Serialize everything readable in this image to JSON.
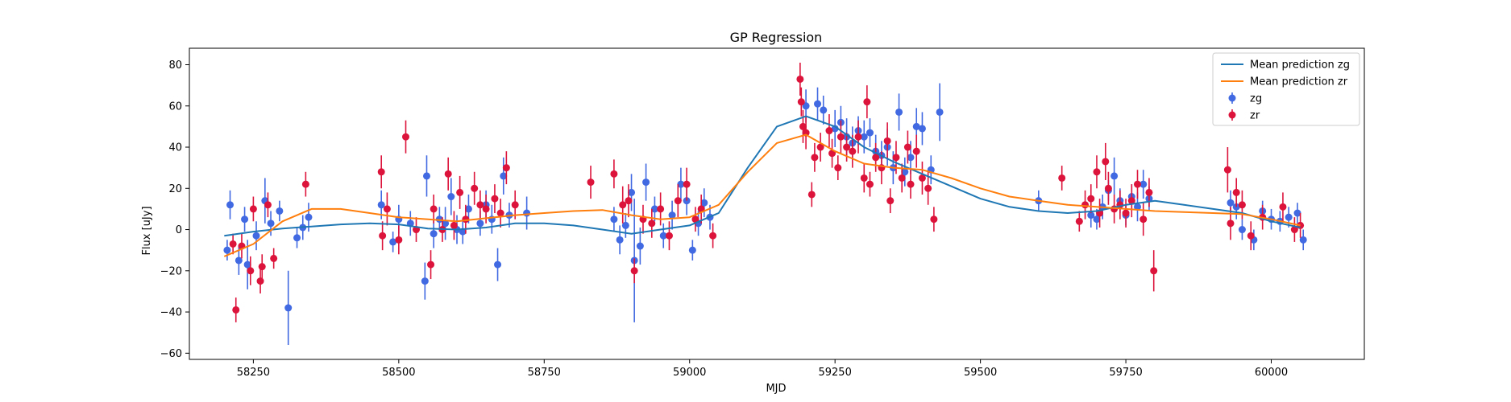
{
  "chart_data": {
    "type": "scatter",
    "title": "GP Regression",
    "xlabel": "MJD",
    "ylabel": "Flux [uJy]",
    "xlim": [
      58140,
      60160
    ],
    "ylim": [
      -63,
      88
    ],
    "xticks": [
      58250,
      58500,
      58750,
      59000,
      59250,
      59500,
      59750,
      60000
    ],
    "yticks": [
      -60,
      -40,
      -20,
      0,
      20,
      40,
      60,
      80
    ],
    "grid": false,
    "legend_position": "top-right",
    "colors": {
      "zg_points": "#4169e1",
      "zr_points": "#dc143c",
      "zg_line": "#1f77b4",
      "zr_line": "#ff7f0e"
    },
    "series": [
      {
        "name": "Mean prediction zg",
        "kind": "line",
        "x": [
          58200,
          58250,
          58300,
          58350,
          58400,
          58450,
          58500,
          58550,
          58600,
          58650,
          58700,
          58750,
          58800,
          58850,
          58900,
          58950,
          59000,
          59050,
          59100,
          59150,
          59200,
          59250,
          59300,
          59350,
          59400,
          59450,
          59500,
          59550,
          59600,
          59650,
          59700,
          59750,
          59800,
          59850,
          59900,
          59950,
          60000,
          60050
        ],
        "y": [
          -3,
          -1,
          0.5,
          1.5,
          2.5,
          3,
          2.5,
          0.5,
          0,
          1,
          3,
          3,
          2,
          0,
          -2,
          0,
          2,
          8,
          30,
          50,
          55,
          50,
          40,
          33,
          27,
          21,
          15,
          11,
          9,
          8,
          9,
          12,
          14,
          12,
          10,
          8,
          4,
          1
        ]
      },
      {
        "name": "Mean prediction zr",
        "kind": "line",
        "x": [
          58200,
          58250,
          58300,
          58350,
          58400,
          58450,
          58500,
          58550,
          58600,
          58650,
          58700,
          58750,
          58800,
          58850,
          58900,
          58950,
          59000,
          59050,
          59100,
          59150,
          59200,
          59250,
          59300,
          59350,
          59400,
          59450,
          59500,
          59550,
          59600,
          59650,
          59700,
          59750,
          59800,
          59850,
          59900,
          59950,
          60000,
          60050
        ],
        "y": [
          -13,
          -7,
          4,
          10,
          10,
          8,
          6,
          5,
          4,
          5.5,
          7,
          8,
          9,
          9.5,
          7,
          5,
          6,
          12,
          28,
          42,
          46,
          38,
          32,
          30,
          29,
          25,
          20,
          16,
          14,
          12,
          11,
          10,
          9,
          8.5,
          8,
          7.5,
          5,
          2
        ]
      },
      {
        "name": "zg",
        "kind": "errorbar",
        "x": [
          58205,
          58210,
          58225,
          58235,
          58240,
          58255,
          58270,
          58280,
          58295,
          58310,
          58325,
          58335,
          58345,
          58470,
          58490,
          58500,
          58520,
          58545,
          58548,
          58560,
          58570,
          58580,
          58590,
          58600,
          58610,
          58620,
          58640,
          58650,
          58660,
          58670,
          58680,
          58690,
          58720,
          58870,
          58880,
          58890,
          58900,
          58905,
          58915,
          58925,
          58940,
          58955,
          58970,
          58985,
          58995,
          59005,
          59015,
          59025,
          59035,
          59200,
          59220,
          59230,
          59250,
          59260,
          59270,
          59280,
          59290,
          59300,
          59310,
          59320,
          59330,
          59340,
          59350,
          59360,
          59370,
          59380,
          59390,
          59400,
          59415,
          59430,
          59600,
          59690,
          59700,
          59710,
          59720,
          59730,
          59740,
          59750,
          59760,
          59770,
          59780,
          59790,
          59930,
          59940,
          59950,
          59970,
          59985,
          60000,
          60015,
          60030,
          60045,
          60055
        ],
        "y": [
          -10,
          12,
          -15,
          5,
          -17,
          -3,
          14,
          3,
          9,
          -38,
          -4,
          1,
          6,
          12,
          -6,
          5,
          3,
          -25,
          26,
          -2,
          5,
          3,
          16,
          0,
          -1,
          10,
          3,
          12,
          5,
          -17,
          26,
          7,
          8,
          5,
          -5,
          2,
          18,
          -15,
          -8,
          23,
          10,
          -3,
          7,
          22,
          14,
          -10,
          3,
          13,
          6,
          60,
          61,
          58,
          49,
          52,
          45,
          42,
          48,
          45,
          47,
          38,
          36,
          40,
          30,
          57,
          28,
          35,
          50,
          49,
          29,
          57,
          14,
          7,
          5,
          11,
          19,
          26,
          14,
          7,
          16,
          11,
          22,
          15,
          13,
          11,
          0,
          -5,
          9,
          5,
          4,
          6,
          8,
          -5
        ],
        "err": [
          5,
          7,
          7,
          6,
          12,
          7,
          11,
          6,
          5,
          18,
          5,
          6,
          7,
          7,
          5,
          7,
          6,
          9,
          10,
          7,
          6,
          8,
          9,
          7,
          6,
          7,
          6,
          7,
          7,
          8,
          9,
          6,
          8,
          6,
          7,
          6,
          9,
          30,
          9,
          9,
          6,
          6,
          7,
          8,
          7,
          5,
          6,
          7,
          6,
          8,
          8,
          7,
          9,
          8,
          9,
          8,
          7,
          8,
          7,
          8,
          7,
          9,
          8,
          9,
          7,
          8,
          9,
          8,
          7,
          14,
          5,
          6,
          5,
          6,
          5,
          9,
          6,
          5,
          6,
          7,
          7,
          6,
          6,
          6,
          5,
          5,
          5,
          5,
          5,
          5,
          5,
          5
        ]
      },
      {
        "name": "zr",
        "kind": "errorbar",
        "x": [
          58215,
          58220,
          58230,
          58245,
          58250,
          58262,
          58265,
          58275,
          58285,
          58340,
          58470,
          58472,
          58480,
          58500,
          58512,
          58530,
          58555,
          58560,
          58575,
          58585,
          58595,
          58605,
          58615,
          58630,
          58640,
          58650,
          58665,
          58675,
          58685,
          58700,
          58830,
          58870,
          58885,
          58895,
          58905,
          58920,
          58935,
          58950,
          58965,
          58980,
          58995,
          59010,
          59020,
          59040,
          59190,
          59192,
          59195,
          59200,
          59210,
          59215,
          59225,
          59240,
          59245,
          59255,
          59260,
          59270,
          59280,
          59290,
          59300,
          59305,
          59310,
          59320,
          59330,
          59340,
          59345,
          59355,
          59365,
          59375,
          59380,
          59390,
          59400,
          59410,
          59420,
          59640,
          59670,
          59680,
          59690,
          59700,
          59705,
          59715,
          59720,
          59730,
          59740,
          59750,
          59760,
          59770,
          59780,
          59790,
          59798,
          59925,
          59930,
          59940,
          59950,
          59965,
          59985,
          60020,
          60040,
          60050
        ],
        "y": [
          -7,
          -39,
          -8,
          -20,
          10,
          -25,
          -18,
          12,
          -14,
          22,
          28,
          -3,
          10,
          -5,
          45,
          0,
          -17,
          10,
          0,
          27,
          2,
          18,
          5,
          20,
          12,
          10,
          15,
          8,
          30,
          12,
          23,
          27,
          12,
          14,
          -20,
          5,
          3,
          10,
          -3,
          14,
          22,
          5,
          10,
          -3,
          73,
          62,
          50,
          47,
          17,
          35,
          40,
          48,
          37,
          30,
          45,
          40,
          38,
          45,
          25,
          62,
          22,
          35,
          30,
          43,
          14,
          35,
          25,
          40,
          22,
          38,
          25,
          20,
          5,
          25,
          4,
          12,
          15,
          28,
          8,
          33,
          20,
          10,
          12,
          8,
          14,
          22,
          5,
          18,
          -20,
          29,
          3,
          18,
          12,
          -3,
          6,
          11,
          0,
          2
        ],
        "err": [
          5,
          6,
          6,
          7,
          6,
          6,
          6,
          6,
          5,
          6,
          8,
          7,
          8,
          7,
          8,
          6,
          7,
          7,
          6,
          8,
          7,
          8,
          7,
          8,
          7,
          7,
          7,
          7,
          8,
          7,
          8,
          7,
          9,
          8,
          6,
          7,
          7,
          8,
          7,
          8,
          8,
          6,
          7,
          6,
          8,
          7,
          8,
          8,
          6,
          7,
          7,
          8,
          7,
          6,
          8,
          7,
          8,
          8,
          7,
          8,
          6,
          7,
          8,
          9,
          6,
          8,
          7,
          8,
          7,
          8,
          8,
          8,
          6,
          6,
          5,
          7,
          7,
          8,
          7,
          9,
          8,
          7,
          7,
          7,
          8,
          7,
          8,
          7,
          10,
          11,
          8,
          7,
          7,
          7,
          6,
          7,
          6,
          6
        ]
      }
    ]
  }
}
